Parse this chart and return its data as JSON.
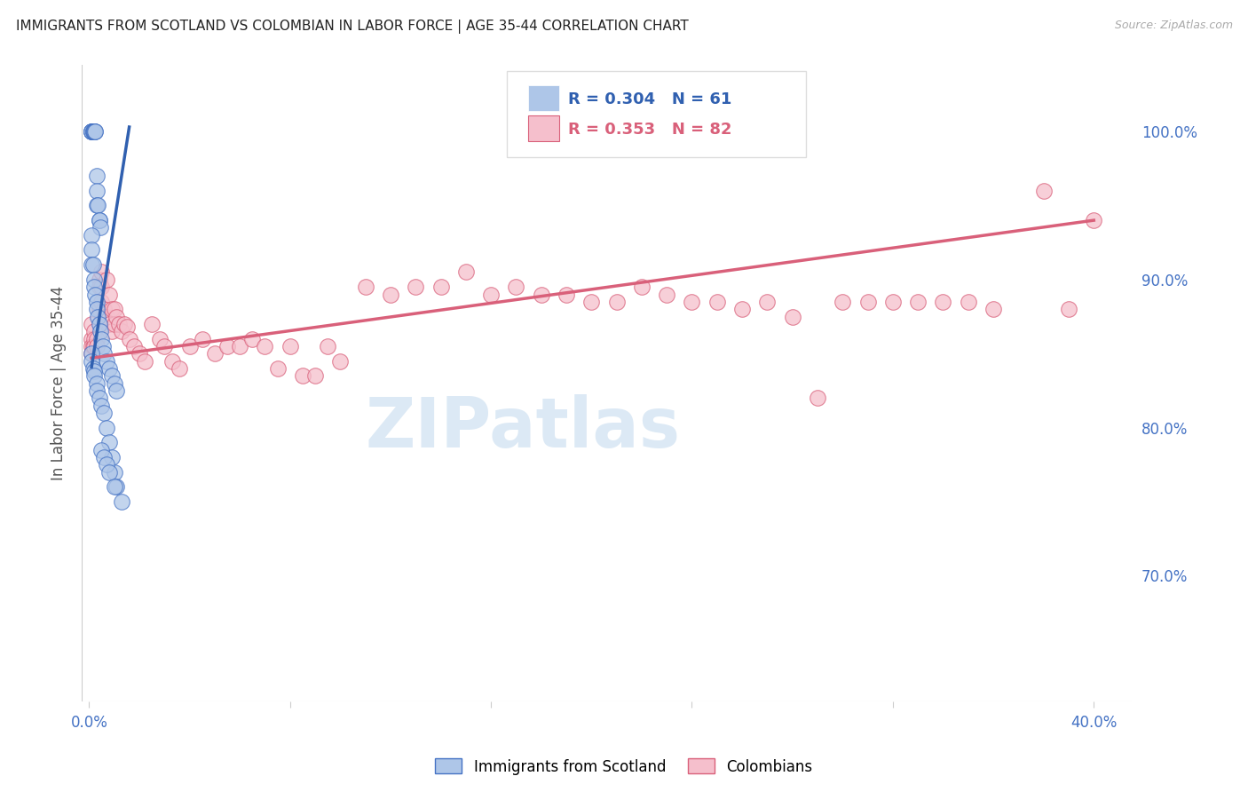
{
  "title": "IMMIGRANTS FROM SCOTLAND VS COLOMBIAN IN LABOR FORCE | AGE 35-44 CORRELATION CHART",
  "source": "Source: ZipAtlas.com",
  "ylabel": "In Labor Force | Age 35-44",
  "xlim": [
    -0.003,
    0.415
  ],
  "ylim": [
    0.615,
    1.045
  ],
  "yticks_right": [
    0.7,
    0.8,
    0.9,
    1.0
  ],
  "ytick_right_labels": [
    "70.0%",
    "80.0%",
    "90.0%",
    "100.0%"
  ],
  "xtick_vals": [
    0.0,
    0.08,
    0.16,
    0.24,
    0.32,
    0.4
  ],
  "xtick_labels": [
    "0.0%",
    "",
    "",
    "",
    "",
    "40.0%"
  ],
  "scotland_R": 0.304,
  "scotland_N": 61,
  "colombian_R": 0.353,
  "colombian_N": 82,
  "scotland_color": "#aec6e8",
  "scotland_edge_color": "#4472c4",
  "scotland_line_color": "#3060b0",
  "colombian_color": "#f5bfcc",
  "colombian_edge_color": "#d9607a",
  "colombian_line_color": "#d9607a",
  "background_color": "#ffffff",
  "grid_color": "#dddddd",
  "title_color": "#222222",
  "source_color": "#aaaaaa",
  "ylabel_color": "#555555",
  "tick_color": "#4472c4",
  "watermark_text": "ZIPatlas",
  "watermark_color": "#dce9f5",
  "legend_edge_color": "#dddddd",
  "bottom_legend_labels": [
    "Immigrants from Scotland",
    "Colombians"
  ],
  "scotland_x": [
    0.001,
    0.001,
    0.001,
    0.001,
    0.0015,
    0.0015,
    0.0015,
    0.002,
    0.002,
    0.002,
    0.002,
    0.0025,
    0.0025,
    0.003,
    0.003,
    0.003,
    0.0035,
    0.004,
    0.004,
    0.0045,
    0.001,
    0.001,
    0.001,
    0.0015,
    0.002,
    0.002,
    0.0025,
    0.003,
    0.003,
    0.0035,
    0.004,
    0.0045,
    0.005,
    0.0055,
    0.006,
    0.007,
    0.008,
    0.009,
    0.01,
    0.011,
    0.001,
    0.001,
    0.0015,
    0.002,
    0.002,
    0.003,
    0.003,
    0.004,
    0.005,
    0.006,
    0.007,
    0.008,
    0.009,
    0.01,
    0.011,
    0.013,
    0.005,
    0.006,
    0.007,
    0.008,
    0.01
  ],
  "scotland_y": [
    1.0,
    1.0,
    1.0,
    1.0,
    1.0,
    1.0,
    1.0,
    1.0,
    1.0,
    1.0,
    1.0,
    1.0,
    1.0,
    0.97,
    0.96,
    0.95,
    0.95,
    0.94,
    0.94,
    0.935,
    0.93,
    0.92,
    0.91,
    0.91,
    0.9,
    0.895,
    0.89,
    0.885,
    0.88,
    0.875,
    0.87,
    0.865,
    0.86,
    0.855,
    0.85,
    0.845,
    0.84,
    0.835,
    0.83,
    0.825,
    0.85,
    0.845,
    0.84,
    0.838,
    0.835,
    0.83,
    0.825,
    0.82,
    0.815,
    0.81,
    0.8,
    0.79,
    0.78,
    0.77,
    0.76,
    0.75,
    0.785,
    0.78,
    0.775,
    0.77,
    0.76
  ],
  "colombian_x": [
    0.001,
    0.001,
    0.001,
    0.001,
    0.0015,
    0.002,
    0.002,
    0.002,
    0.003,
    0.003,
    0.004,
    0.004,
    0.004,
    0.005,
    0.005,
    0.005,
    0.006,
    0.006,
    0.007,
    0.007,
    0.008,
    0.008,
    0.009,
    0.009,
    0.01,
    0.01,
    0.011,
    0.012,
    0.013,
    0.014,
    0.015,
    0.016,
    0.018,
    0.02,
    0.022,
    0.025,
    0.028,
    0.03,
    0.033,
    0.036,
    0.04,
    0.045,
    0.05,
    0.055,
    0.06,
    0.065,
    0.07,
    0.075,
    0.08,
    0.085,
    0.09,
    0.095,
    0.1,
    0.11,
    0.12,
    0.13,
    0.14,
    0.15,
    0.16,
    0.17,
    0.18,
    0.19,
    0.2,
    0.21,
    0.22,
    0.23,
    0.24,
    0.25,
    0.26,
    0.27,
    0.28,
    0.29,
    0.3,
    0.31,
    0.32,
    0.33,
    0.34,
    0.35,
    0.36,
    0.38,
    0.39,
    0.4
  ],
  "colombian_y": [
    0.87,
    0.86,
    0.855,
    0.85,
    0.855,
    0.865,
    0.86,
    0.855,
    0.86,
    0.855,
    0.9,
    0.895,
    0.88,
    0.905,
    0.895,
    0.885,
    0.88,
    0.875,
    0.9,
    0.875,
    0.89,
    0.87,
    0.88,
    0.865,
    0.88,
    0.87,
    0.875,
    0.87,
    0.865,
    0.87,
    0.868,
    0.86,
    0.855,
    0.85,
    0.845,
    0.87,
    0.86,
    0.855,
    0.845,
    0.84,
    0.855,
    0.86,
    0.85,
    0.855,
    0.855,
    0.86,
    0.855,
    0.84,
    0.855,
    0.835,
    0.835,
    0.855,
    0.845,
    0.895,
    0.89,
    0.895,
    0.895,
    0.905,
    0.89,
    0.895,
    0.89,
    0.89,
    0.885,
    0.885,
    0.895,
    0.89,
    0.885,
    0.885,
    0.88,
    0.885,
    0.875,
    0.82,
    0.885,
    0.885,
    0.885,
    0.885,
    0.885,
    0.885,
    0.88,
    0.96,
    0.88,
    0.94
  ],
  "scotland_line_x": [
    0.001,
    0.016
  ],
  "scotland_line_y": [
    0.841,
    1.003
  ],
  "colombian_line_x": [
    0.001,
    0.4
  ],
  "colombian_line_y": [
    0.847,
    0.94
  ]
}
